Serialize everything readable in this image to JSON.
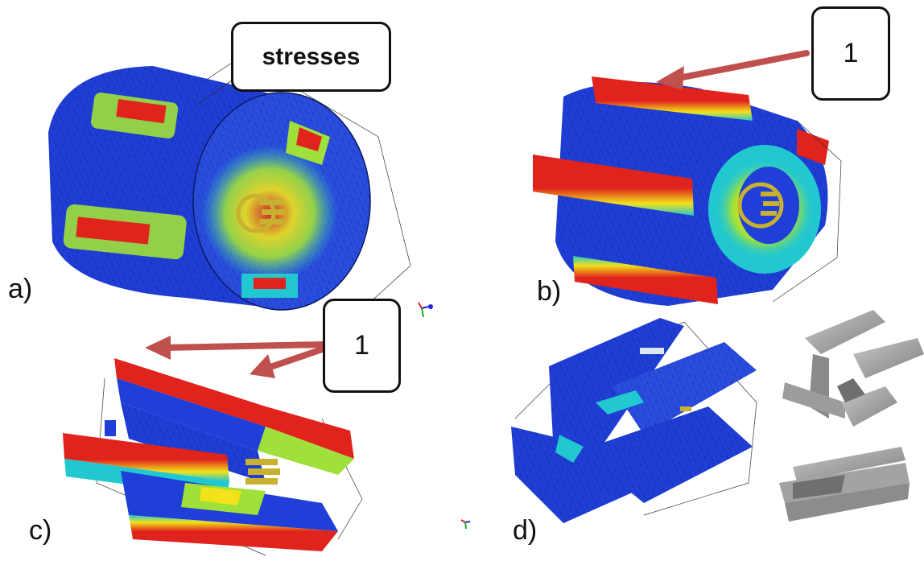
{
  "callouts": {
    "stresses": "stresses",
    "b_number": "1",
    "c_number": "1"
  },
  "panel_labels": {
    "a": "a)",
    "b": "b)",
    "c": "c)",
    "d": "d)"
  },
  "colors": {
    "stress_low": "#1f3fd8",
    "stress_mid": "#22c8d0",
    "stress_midhigh": "#9fe03a",
    "stress_high": "#f2e21a",
    "stress_max": "#e0231c",
    "arrow": "#c0504d",
    "part_gray": "#9a9a9a",
    "bolt_gold": "#c8b030"
  }
}
